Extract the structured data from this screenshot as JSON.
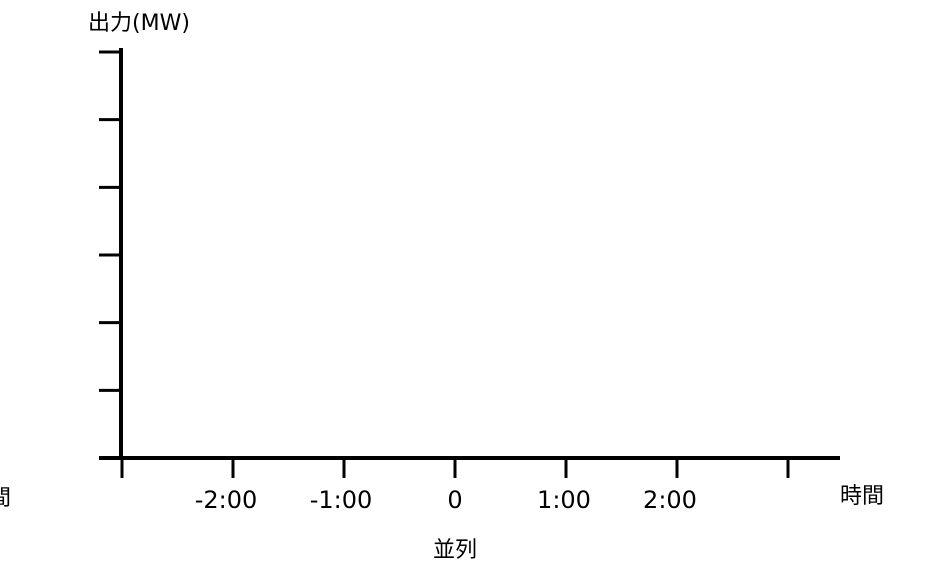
{
  "chart_data": {
    "type": "line",
    "ylabel": "出力(MW)",
    "xlabel": "時間",
    "x_axis_caption": "並列",
    "left_edge_label": "間",
    "x_tick_labels": [
      "-2:00",
      "-1:00",
      "0",
      "1:00",
      "2:00"
    ],
    "x_tick_values_hours": [
      -3,
      -2,
      -1,
      0,
      1,
      2,
      3
    ],
    "xlim": [
      -3,
      3.5
    ],
    "y_tick_count": 6,
    "series": [],
    "grid": false,
    "line_color": "#000000"
  }
}
